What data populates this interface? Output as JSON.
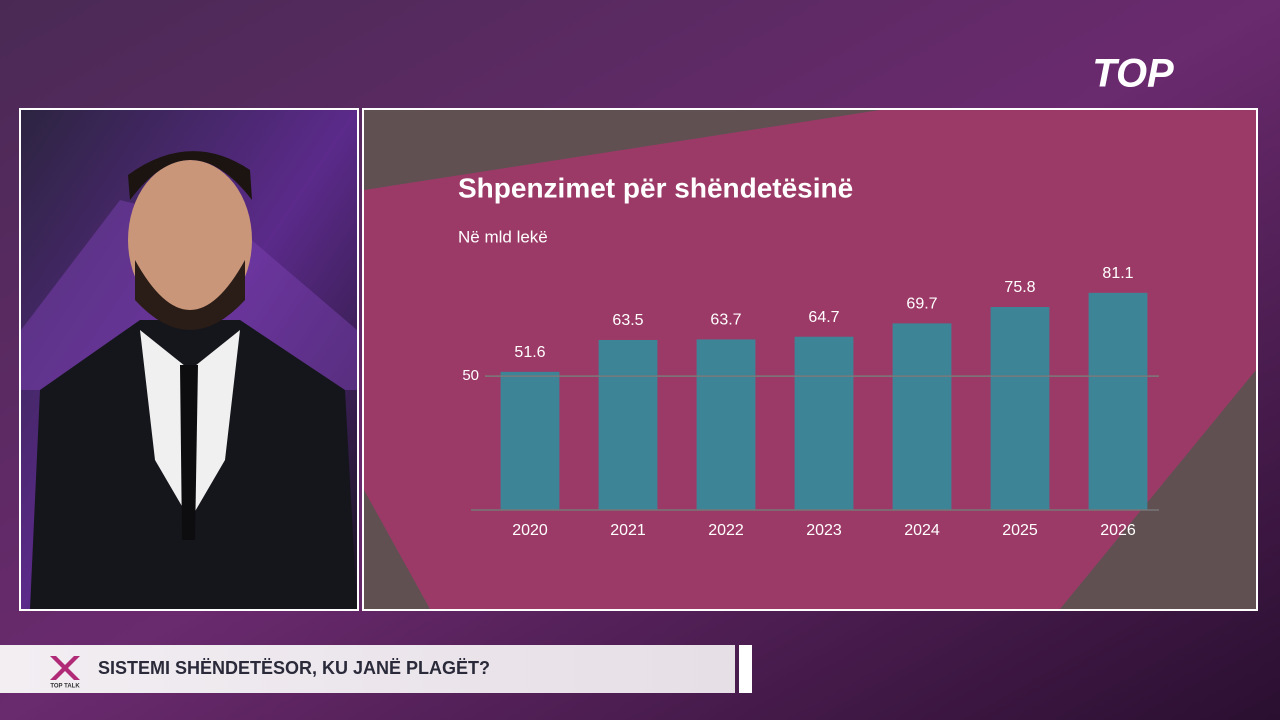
{
  "chart_data": {
    "type": "bar",
    "title": "Shpenzimet për shëndetësinë",
    "subtitle": "Në mld lekë",
    "categories": [
      "2020",
      "2021",
      "2022",
      "2023",
      "2024",
      "2025",
      "2026"
    ],
    "values": [
      51.6,
      63.5,
      63.7,
      64.7,
      69.7,
      75.8,
      81.1
    ],
    "color": "#3d8497",
    "ylim": [
      0,
      90
    ],
    "yticks": [
      50
    ],
    "grid": true
  },
  "broadcast": {
    "channel_logo": "TOP",
    "show_logo": "TOP TALK",
    "headline": "SISTEMI SHËNDETËSOR, KU JANË PLAGËT?"
  }
}
